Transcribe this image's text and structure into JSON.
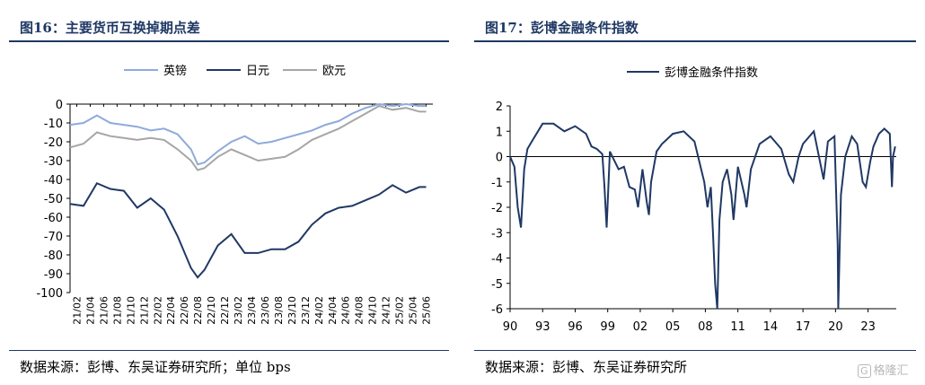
{
  "panels": {
    "left": {
      "title": "图16：主要货币互换掉期点差",
      "source": "数据来源：彭博、东吴证券研究所；单位 bps"
    },
    "right": {
      "title": "图17：彭博金融条件指数",
      "source": "数据来源：彭博、东吴证券研究所"
    }
  },
  "watermark": {
    "badge": "G",
    "text": "格隆汇"
  },
  "chart_data": [
    {
      "type": "line",
      "title": "图16：主要货币互换掉期点差",
      "unit": "bps",
      "x_tick_labels": [
        "21/02",
        "21/04",
        "21/06",
        "21/08",
        "21/10",
        "21/12",
        "22/02",
        "22/04",
        "22/06",
        "22/08",
        "22/10",
        "22/12",
        "23/02",
        "23/04",
        "23/06",
        "23/08",
        "23/10",
        "23/12",
        "24/02",
        "24/04",
        "24/06",
        "24/08",
        "24/10",
        "24/12",
        "25/02",
        "25/04",
        "25/06"
      ],
      "ylim": [
        -100,
        0
      ],
      "y_ticks": [
        0,
        -10,
        -20,
        -30,
        -40,
        -50,
        -60,
        -70,
        -80,
        -90,
        -100
      ],
      "legend_position": "top",
      "series": [
        {
          "name": "英镑",
          "color": "#8eaadb",
          "x": [
            "21/01",
            "21/03",
            "21/05",
            "21/07",
            "21/09",
            "21/11",
            "22/01",
            "22/03",
            "22/05",
            "22/07",
            "22/08",
            "22/09",
            "22/11",
            "23/01",
            "23/03",
            "23/05",
            "23/07",
            "23/09",
            "23/11",
            "24/01",
            "24/03",
            "24/05",
            "24/07",
            "24/09",
            "24/11",
            "25/01",
            "25/03",
            "25/05",
            "25/06"
          ],
          "values": [
            -11,
            -10,
            -6,
            -10,
            -11,
            -12,
            -14,
            -13,
            -16,
            -24,
            -32,
            -31,
            -25,
            -20,
            -17,
            -21,
            -20,
            -18,
            -16,
            -14,
            -11,
            -9,
            -5,
            -2,
            0,
            -1,
            0,
            -1,
            -1
          ]
        },
        {
          "name": "日元",
          "color": "#203864",
          "x": [
            "21/01",
            "21/03",
            "21/05",
            "21/07",
            "21/09",
            "21/11",
            "22/01",
            "22/03",
            "22/05",
            "22/07",
            "22/08",
            "22/09",
            "22/11",
            "23/01",
            "23/03",
            "23/05",
            "23/07",
            "23/09",
            "23/11",
            "24/01",
            "24/03",
            "24/05",
            "24/07",
            "24/09",
            "24/11",
            "25/01",
            "25/03",
            "25/05",
            "25/06"
          ],
          "values": [
            -53,
            -54,
            -42,
            -45,
            -46,
            -55,
            -50,
            -56,
            -70,
            -87,
            -92,
            -88,
            -75,
            -69,
            -79,
            -79,
            -77,
            -77,
            -73,
            -64,
            -58,
            -55,
            -54,
            -51,
            -48,
            -43,
            -47,
            -44,
            -44
          ]
        },
        {
          "name": "欧元",
          "color": "#a6a6a6",
          "x": [
            "21/01",
            "21/03",
            "21/05",
            "21/07",
            "21/09",
            "21/11",
            "22/01",
            "22/03",
            "22/05",
            "22/07",
            "22/08",
            "22/09",
            "22/11",
            "23/01",
            "23/03",
            "23/05",
            "23/07",
            "23/09",
            "23/11",
            "24/01",
            "24/03",
            "24/05",
            "24/07",
            "24/09",
            "24/11",
            "25/01",
            "25/03",
            "25/05",
            "25/06"
          ],
          "values": [
            -23,
            -21,
            -15,
            -17,
            -18,
            -19,
            -18,
            -19,
            -24,
            -30,
            -35,
            -34,
            -28,
            -24,
            -27,
            -30,
            -29,
            -28,
            -24,
            -19,
            -16,
            -13,
            -9,
            -5,
            -1,
            -3,
            -2,
            -4,
            -4
          ]
        }
      ]
    },
    {
      "type": "line",
      "title": "图17：彭博金融条件指数",
      "x_tick_labels": [
        "90",
        "93",
        "96",
        "99",
        "02",
        "05",
        "08",
        "11",
        "14",
        "17",
        "20",
        "23"
      ],
      "ylim": [
        -6,
        2
      ],
      "y_ticks": [
        2,
        1,
        0,
        -1,
        -2,
        -3,
        -4,
        -5,
        -6
      ],
      "legend_position": "top",
      "series": [
        {
          "name": "彭博金融条件指数",
          "color": "#203864",
          "x": [
            1990.0,
            1990.4,
            1990.7,
            1991.0,
            1991.3,
            1991.6,
            1992.0,
            1993.0,
            1994.0,
            1995.0,
            1996.0,
            1997.0,
            1997.5,
            1998.0,
            1998.5,
            1998.7,
            1998.9,
            1999.2,
            2000.0,
            2000.5,
            2001.0,
            2001.5,
            2001.8,
            2002.2,
            2002.6,
            2002.8,
            2003.0,
            2003.5,
            2004.0,
            2005.0,
            2006.0,
            2007.0,
            2007.5,
            2007.9,
            2008.2,
            2008.5,
            2008.7,
            2008.9,
            2009.1,
            2009.3,
            2009.6,
            2010.0,
            2010.4,
            2010.6,
            2011.0,
            2011.6,
            2011.8,
            2012.2,
            2013.0,
            2014.0,
            2015.0,
            2015.7,
            2016.1,
            2016.6,
            2017.0,
            2018.0,
            2018.9,
            2019.3,
            2019.9,
            2020.2,
            2020.25,
            2020.5,
            2020.9,
            2021.5,
            2022.0,
            2022.5,
            2022.8,
            2023.2,
            2023.5,
            2024.0,
            2024.5,
            2025.0,
            2025.2,
            2025.3,
            2025.5
          ],
          "values": [
            0.0,
            -0.4,
            -2.0,
            -2.8,
            -0.5,
            0.3,
            0.6,
            1.3,
            1.3,
            1.0,
            1.2,
            0.9,
            0.4,
            0.3,
            0.1,
            -1.2,
            -2.8,
            0.2,
            -0.5,
            -0.4,
            -1.2,
            -1.3,
            -2.0,
            -0.5,
            -1.8,
            -2.3,
            -1.0,
            0.2,
            0.5,
            0.9,
            1.0,
            0.6,
            -0.3,
            -1.0,
            -2.0,
            -1.2,
            -3.0,
            -5.0,
            -6.0,
            -2.5,
            -1.0,
            -0.5,
            -1.5,
            -2.5,
            -0.4,
            -1.5,
            -2.0,
            -0.5,
            0.5,
            0.8,
            0.3,
            -0.7,
            -1.0,
            0.0,
            0.5,
            1.0,
            -0.9,
            0.6,
            0.8,
            -3.5,
            -6.0,
            -1.5,
            0.0,
            0.8,
            0.5,
            -1.0,
            -1.2,
            -0.2,
            0.4,
            0.9,
            1.1,
            0.9,
            -1.2,
            0.0,
            0.4
          ]
        }
      ]
    }
  ]
}
